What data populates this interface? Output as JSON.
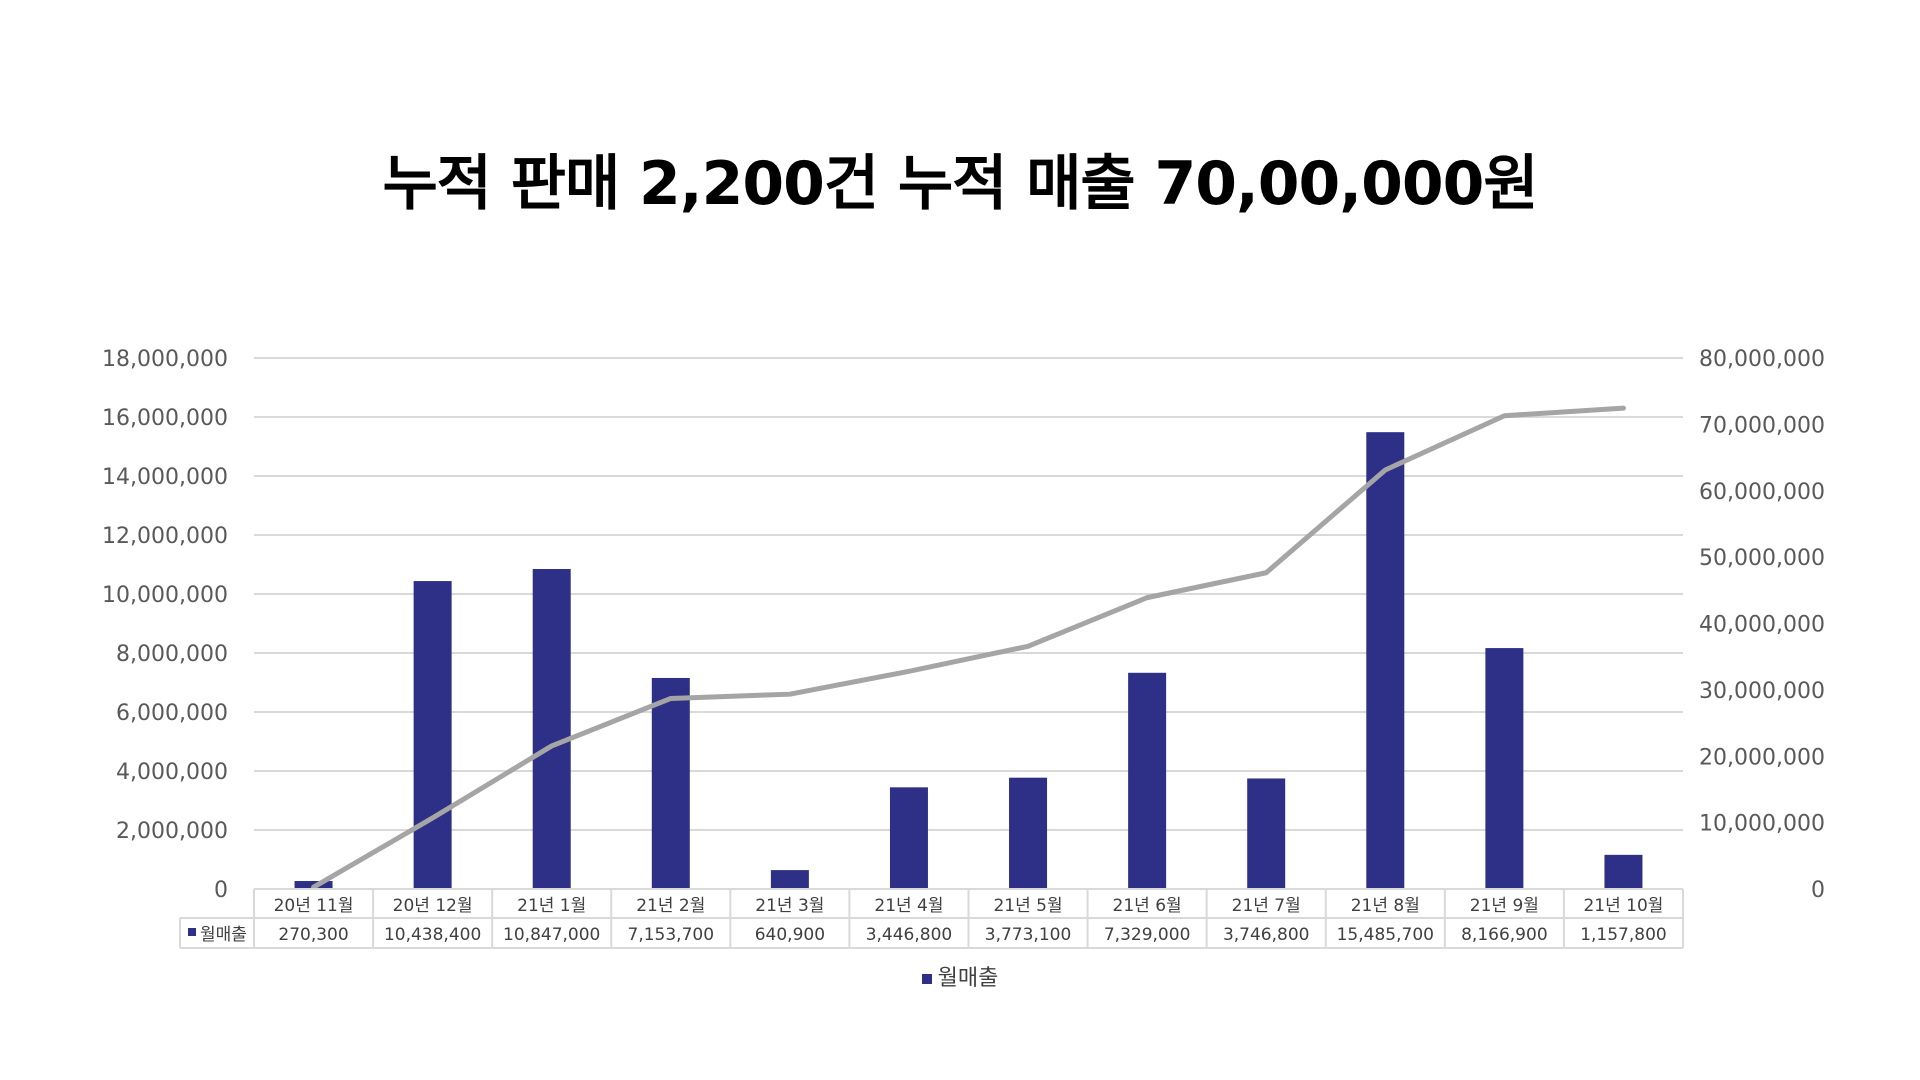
{
  "title": "누적 판매 2,200건 누적 매출 70,00,000원",
  "chart_data": {
    "type": "bar",
    "categories": [
      "20년 11월",
      "20년 12월",
      "21년 1월",
      "21년 2월",
      "21년 3월",
      "21년 4월",
      "21년 5월",
      "21년 6월",
      "21년 7월",
      "21년 8월",
      "21년 9월",
      "21년 10월"
    ],
    "series": [
      {
        "name": "월매출",
        "type": "bar",
        "axis": "left",
        "color": "#2e3087",
        "values": [
          270300,
          10438400,
          10847000,
          7153700,
          640900,
          3446800,
          3773100,
          7329000,
          3746800,
          15485700,
          8166900,
          1157800
        ],
        "labels": [
          "270,300",
          "10,438,400",
          "10,847,000",
          "7,153,700",
          "640,900",
          "3,446,800",
          "3,773,100",
          "7,329,000",
          "3,746,800",
          "15,485,700",
          "8,166,900",
          "1,157,800"
        ]
      },
      {
        "type": "line",
        "axis": "right",
        "color": "#a5a5a5",
        "values": [
          270300,
          10708700,
          21555700,
          28709400,
          29350300,
          32797100,
          36570200,
          43899200,
          47646000,
          63131700,
          71298600,
          72456400
        ]
      }
    ],
    "y_left": {
      "min": 0,
      "max": 18000000,
      "ticks": [
        0,
        2000000,
        4000000,
        6000000,
        8000000,
        10000000,
        12000000,
        14000000,
        16000000,
        18000000
      ],
      "tick_labels": [
        "0",
        "2,000,000",
        "4,000,000",
        "6,000,000",
        "8,000,000",
        "10,000,000",
        "12,000,000",
        "14,000,000",
        "16,000,000",
        "18,000,000"
      ]
    },
    "y_right": {
      "min": 0,
      "max": 80000000,
      "ticks": [
        0,
        10000000,
        20000000,
        30000000,
        40000000,
        50000000,
        60000000,
        70000000,
        80000000
      ],
      "tick_labels": [
        "0",
        "10,000,000",
        "20,000,000",
        "30,000,000",
        "40,000,000",
        "50,000,000",
        "60,000,000",
        "70,000,000",
        "80,000,000"
      ]
    },
    "grid": true,
    "data_table": true,
    "legend": {
      "position": "bottom",
      "label": "월매출"
    }
  }
}
